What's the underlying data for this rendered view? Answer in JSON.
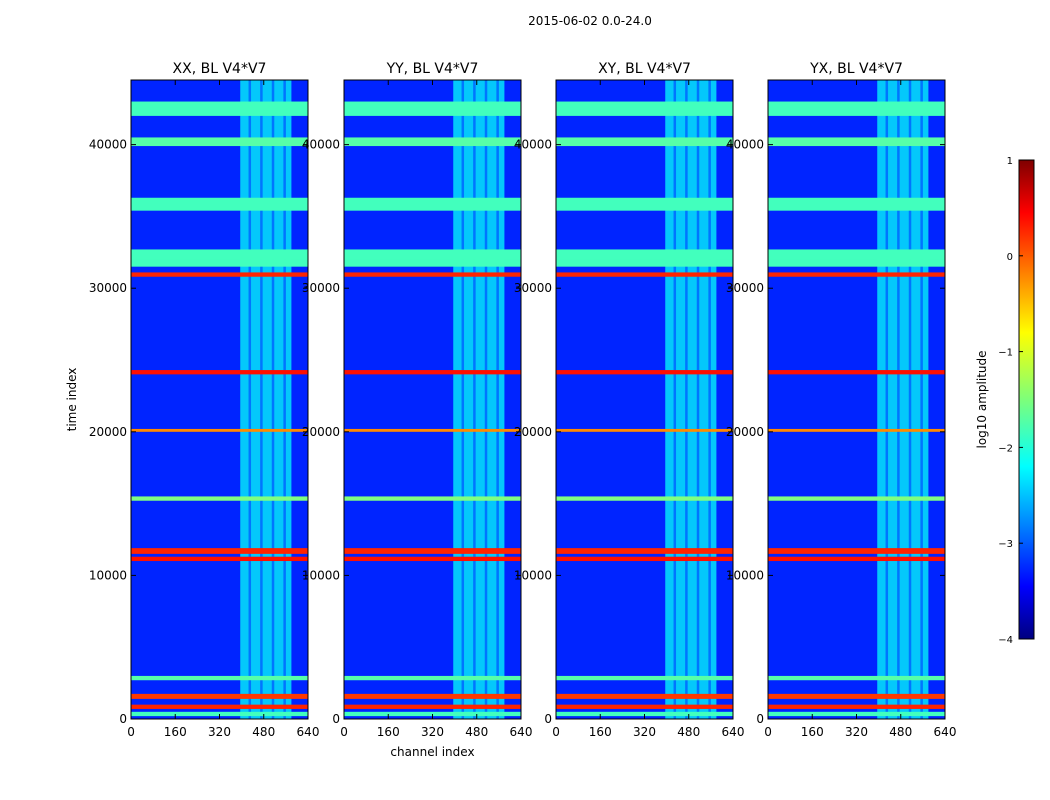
{
  "chart_data": {
    "type": "heatmap",
    "suptitle": "2015-06-02 0.0-24.0",
    "panels": [
      {
        "title": "XX, BL V4*V7",
        "xlabel": "",
        "ylabel": "time index"
      },
      {
        "title": "YY, BL V4*V7",
        "xlabel": "channel index",
        "ylabel": ""
      },
      {
        "title": "XY, BL V4*V7",
        "xlabel": "",
        "ylabel": ""
      },
      {
        "title": "YX, BL V4*V7",
        "xlabel": "",
        "ylabel": ""
      }
    ],
    "xlim": [
      0,
      640
    ],
    "ylim": [
      0,
      44500
    ],
    "xticks": [
      0,
      160,
      320,
      480,
      640
    ],
    "yticks": [
      0,
      10000,
      20000,
      30000,
      40000
    ],
    "colorbar": {
      "label": "log10 amplitude",
      "vmin": -4,
      "vmax": 1,
      "ticks": [
        1,
        0,
        -1,
        -2,
        -3,
        -4
      ],
      "colormap": "jet"
    },
    "flagged_row_bands": [
      {
        "start": 200,
        "end": 500,
        "level": -1.8
      },
      {
        "start": 700,
        "end": 1000,
        "level": 0.2
      },
      {
        "start": 1400,
        "end": 1750,
        "level": 0.1
      },
      {
        "start": 2700,
        "end": 3000,
        "level": -1.7
      },
      {
        "start": 11000,
        "end": 11300,
        "level": 0.3
      },
      {
        "start": 11500,
        "end": 11900,
        "level": 0.2
      },
      {
        "start": 15200,
        "end": 15500,
        "level": -1.5
      },
      {
        "start": 20000,
        "end": 20200,
        "level": -0.3
      },
      {
        "start": 24000,
        "end": 24300,
        "level": 0.3
      },
      {
        "start": 30800,
        "end": 31100,
        "level": 0.2
      },
      {
        "start": 31500,
        "end": 32000,
        "level": -1.8
      },
      {
        "start": 32000,
        "end": 32700,
        "level": -1.8
      },
      {
        "start": 35400,
        "end": 36300,
        "level": -1.8
      },
      {
        "start": 39900,
        "end": 40500,
        "level": -1.7
      },
      {
        "start": 42000,
        "end": 43000,
        "level": -1.8
      }
    ],
    "rfi_channel_range": [
      395,
      580
    ],
    "background_level": -3.2
  }
}
